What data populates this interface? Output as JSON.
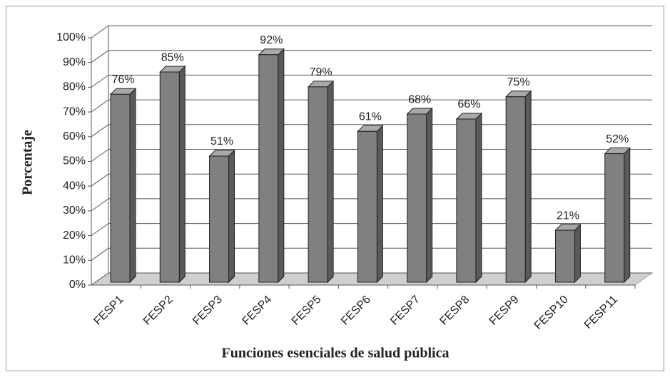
{
  "chart_data": {
    "type": "bar3d",
    "categories": [
      "FESP1",
      "FESP2",
      "FESP3",
      "FESP4",
      "FESP5",
      "FESP6",
      "FESP7",
      "FESP8",
      "FESP9",
      "FESP10",
      "FESP11"
    ],
    "values": [
      76,
      85,
      51,
      92,
      79,
      61,
      68,
      66,
      75,
      21,
      52
    ],
    "value_labels": [
      "76%",
      "85%",
      "51%",
      "92%",
      "79%",
      "61%",
      "68%",
      "66%",
      "75%",
      "21%",
      "52%"
    ],
    "color": "#808080",
    "ylim": [
      0,
      100
    ],
    "yticks": [
      {
        "value": 0,
        "label": "0%"
      },
      {
        "value": 10,
        "label": "10%"
      },
      {
        "value": 20,
        "label": "20%"
      },
      {
        "value": 30,
        "label": "30%"
      },
      {
        "value": 40,
        "label": "40%"
      },
      {
        "value": 50,
        "label": "50%"
      },
      {
        "value": 60,
        "label": "60%"
      },
      {
        "value": 70,
        "label": "70%"
      },
      {
        "value": 80,
        "label": "80%"
      },
      {
        "value": 90,
        "label": "90%"
      },
      {
        "value": 100,
        "label": "100%"
      }
    ],
    "grid": true,
    "ylabel": "Porcentaje",
    "xlabel": "Funciones esenciales de salud pública"
  }
}
